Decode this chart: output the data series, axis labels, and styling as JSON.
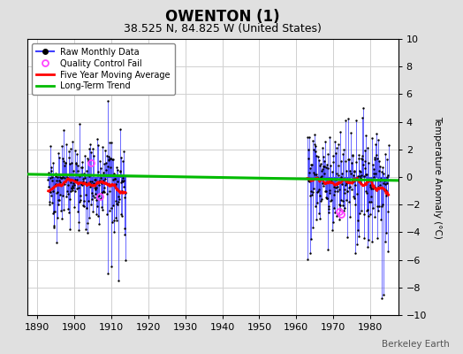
{
  "title": "OWENTON (1)",
  "subtitle": "38.525 N, 84.825 W (United States)",
  "ylabel": "Temperature Anomaly (°C)",
  "watermark": "Berkeley Earth",
  "xlim": [
    1887.5,
    1987.5
  ],
  "ylim": [
    -10,
    10
  ],
  "yticks": [
    -10,
    -8,
    -6,
    -4,
    -2,
    0,
    2,
    4,
    6,
    8,
    10
  ],
  "xticks": [
    1890,
    1900,
    1910,
    1920,
    1930,
    1940,
    1950,
    1960,
    1970,
    1980
  ],
  "fig_bg_color": "#e0e0e0",
  "plot_bg_color": "#ffffff",
  "grid_color": "#d0d0d0",
  "raw_line_color": "#4040ff",
  "raw_marker_color": "black",
  "moving_avg_color": "red",
  "trend_color": "#00bb00",
  "qc_fail_color": "#ff44ff",
  "legend_entries": [
    "Raw Monthly Data",
    "Quality Control Fail",
    "Five Year Moving Average",
    "Long-Term Trend"
  ],
  "trend_x": [
    1887.5,
    1987.5
  ],
  "trend_y": [
    0.2,
    -0.25
  ],
  "seg1_start": 1893,
  "seg1_end": 1913,
  "seg2_start": 1963,
  "seg2_end": 1984,
  "qc_fail_points_seg1": [
    [
      1904.5,
      1.0
    ],
    [
      1907.0,
      -1.4
    ]
  ],
  "qc_fail_points_seg2": [
    [
      1971.5,
      -2.5
    ],
    [
      1972.0,
      -2.7
    ]
  ]
}
